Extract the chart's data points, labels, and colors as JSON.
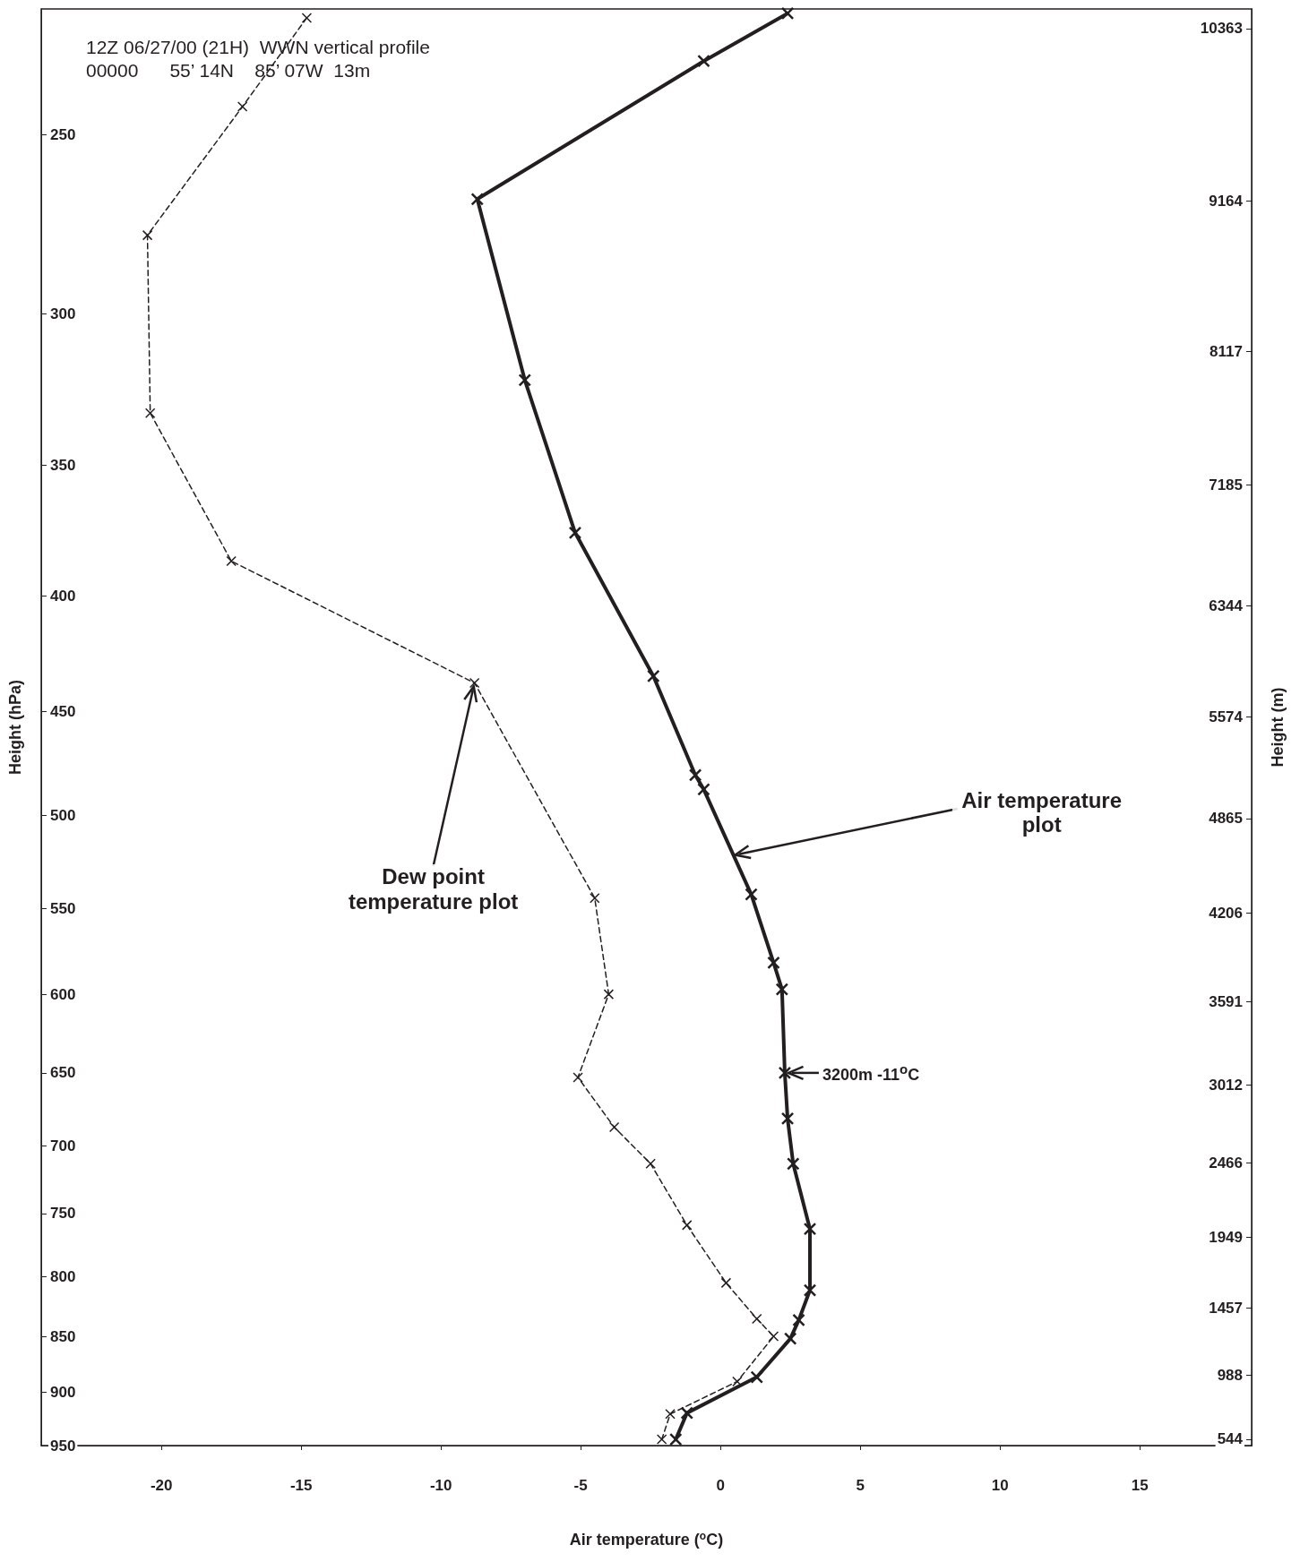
{
  "chart_data": {
    "type": "line",
    "title": "12Z 06/27/00 (21H)  WWN vertical profile",
    "subtitle": "00000      55’ 14N    85’ 07W  13m",
    "xlabel": "Air temperature ($^{o}$C)",
    "ylabel": "Height (hPa)",
    "y2label": "Height (m)",
    "xlim": [
      -24.3,
      19
    ],
    "xticks": [
      -20,
      -15,
      -10,
      -5,
      0,
      5,
      10,
      15
    ],
    "ylim": [
      950,
      220
    ],
    "yticks": [
      250,
      300,
      350,
      400,
      450,
      500,
      550,
      600,
      650,
      700,
      750,
      800,
      850,
      900,
      950
    ],
    "y2lim": [
      500,
      10500
    ],
    "y2ticks": [
      10363,
      9164,
      8117,
      7185,
      6344,
      5574,
      4865,
      4206,
      3591,
      3012,
      2466,
      1949,
      1457,
      988,
      544
    ],
    "log": "y",
    "marker": "cross",
    "series": [
      {
        "color": "#231f20",
        "line_style": "solid",
        "x": [
          2.4,
          -0.6,
          -8.7,
          -7.0,
          -5.2,
          -2.4,
          -0.9,
          -0.6,
          1.1,
          1.9,
          2.2,
          2.3,
          2.4,
          2.6,
          3.2,
          3.2,
          2.8,
          2.5,
          1.3,
          -1.2,
          -1.6
        ],
        "values": [
          221,
          232,
          267,
          321,
          375,
          434,
          480,
          487,
          542,
          581,
          597,
          650,
          681,
          713,
          762,
          811,
          836,
          852,
          886,
          919,
          944
        ]
      },
      {
        "color": "#231f20",
        "line_style": "dashed",
        "x": [
          -14.8,
          -17.1,
          -20.5,
          -20.4,
          -17.5,
          -8.8,
          -4.5,
          -4.0,
          -5.1,
          -3.8,
          -2.5,
          -1.2,
          0.2,
          1.3,
          1.9,
          0.6,
          -1.8,
          -2.1
        ],
        "values": [
          222,
          243,
          277,
          332,
          386,
          437,
          544,
          600,
          653,
          687,
          713,
          759,
          805,
          835,
          850,
          890,
          920,
          944
        ]
      }
    ],
    "annotations": [
      {
        "text": "Air temperature plot",
        "x": 0.4,
        "y": 521
      },
      {
        "text": "Dew point temperature plot",
        "x": -8.8,
        "y": 437
      },
      {
        "text": "3200m  -11$^{o}$C",
        "x": 2.3,
        "y": 650
      }
    ]
  }
}
